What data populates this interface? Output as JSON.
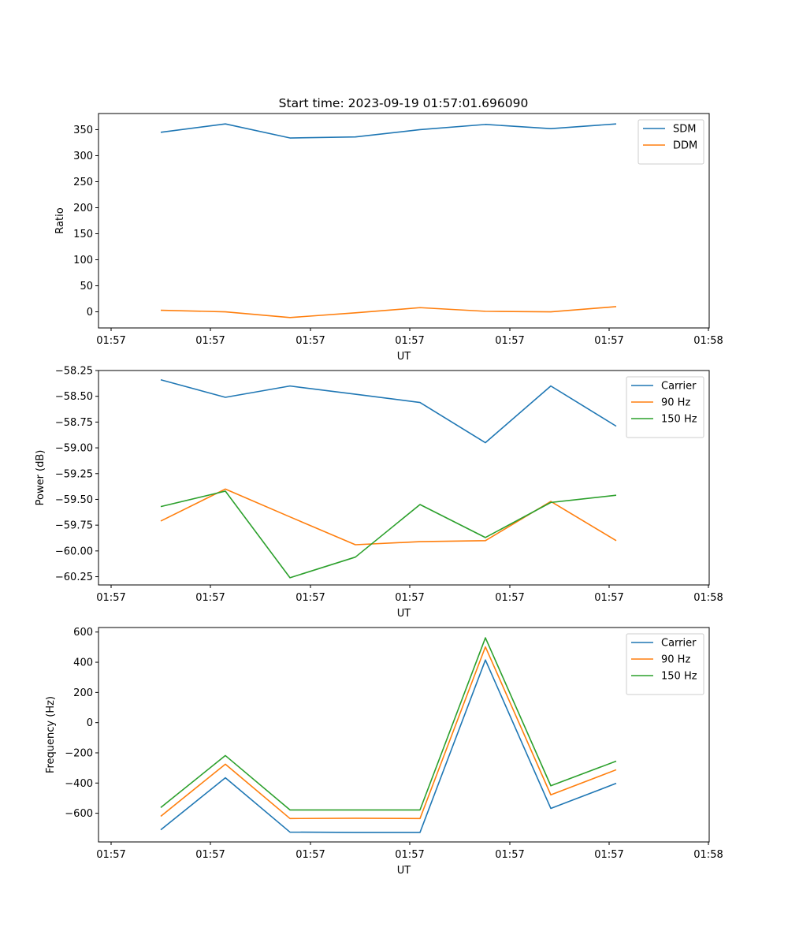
{
  "chart_data": [
    {
      "type": "line",
      "title": "Start time: 2023-09-19 01:57:01.696090",
      "xlabel": "UT",
      "ylabel": "Ratio",
      "x_tick_labels": [
        "01:57",
        "01:57",
        "01:57",
        "01:57",
        "01:57",
        "01:57",
        "01:58"
      ],
      "x_index": [
        0,
        1,
        2,
        3,
        4,
        5,
        6,
        7
      ],
      "ylim": [
        -31,
        381
      ],
      "yticks": [
        0,
        50,
        100,
        150,
        200,
        250,
        300,
        350
      ],
      "ytick_labels": [
        "0",
        "50",
        "100",
        "150",
        "200",
        "250",
        "300",
        "350"
      ],
      "legend": "top-right",
      "series": [
        {
          "name": "SDM",
          "color": "#1f77b4",
          "values": [
            345,
            361,
            334,
            336,
            350,
            360,
            352,
            361
          ]
        },
        {
          "name": "DDM",
          "color": "#ff7f0e",
          "values": [
            3,
            0,
            -11,
            -2,
            8,
            1,
            0,
            10
          ]
        }
      ]
    },
    {
      "type": "line",
      "title": "",
      "xlabel": "UT",
      "ylabel": "Power (dB)",
      "x_tick_labels": [
        "01:57",
        "01:57",
        "01:57",
        "01:57",
        "01:57",
        "01:57",
        "01:58"
      ],
      "x_index": [
        0,
        1,
        2,
        3,
        4,
        5,
        6,
        7
      ],
      "ylim": [
        -60.33,
        -58.25
      ],
      "yticks": [
        -58.25,
        -58.5,
        -58.75,
        -59.0,
        -59.25,
        -59.5,
        -59.75,
        -60.0,
        -60.25
      ],
      "ytick_labels": [
        "−58.25",
        "−58.50",
        "−58.75",
        "−59.00",
        "−59.25",
        "−59.50",
        "−59.75",
        "−60.00",
        "−60.25"
      ],
      "legend": "top-right",
      "series": [
        {
          "name": "Carrier",
          "color": "#1f77b4",
          "values": [
            -58.34,
            -58.51,
            -58.4,
            -58.48,
            -58.56,
            -58.95,
            -58.4,
            -58.79
          ]
        },
        {
          "name": "90 Hz",
          "color": "#ff7f0e",
          "values": [
            -59.71,
            -59.4,
            -59.67,
            -59.94,
            -59.91,
            -59.9,
            -59.52,
            -59.9
          ]
        },
        {
          "name": "150 Hz",
          "color": "#2ca02c",
          "values": [
            -59.57,
            -59.42,
            -60.26,
            -60.06,
            -59.55,
            -59.87,
            -59.53,
            -59.46
          ]
        }
      ]
    },
    {
      "type": "line",
      "title": "",
      "xlabel": "UT",
      "ylabel": "Frequency (Hz)",
      "x_tick_labels": [
        "01:57",
        "01:57",
        "01:57",
        "01:57",
        "01:57",
        "01:57",
        "01:58"
      ],
      "x_index": [
        0,
        1,
        2,
        3,
        4,
        5,
        6,
        7
      ],
      "ylim": [
        -790,
        630
      ],
      "yticks": [
        -600,
        -400,
        -200,
        0,
        200,
        400,
        600
      ],
      "ytick_labels": [
        "−600",
        "−400",
        "−200",
        "0",
        "200",
        "400",
        "600"
      ],
      "legend": "top-right",
      "series": [
        {
          "name": "Carrier",
          "color": "#1f77b4",
          "values": [
            -710,
            -365,
            -725,
            -727,
            -727,
            415,
            -568,
            -402
          ]
        },
        {
          "name": "90 Hz",
          "color": "#ff7f0e",
          "values": [
            -620,
            -275,
            -635,
            -633,
            -635,
            502,
            -478,
            -312
          ]
        },
        {
          "name": "150 Hz",
          "color": "#2ca02c",
          "values": [
            -562,
            -218,
            -578,
            -578,
            -578,
            562,
            -418,
            -255
          ]
        }
      ]
    }
  ]
}
